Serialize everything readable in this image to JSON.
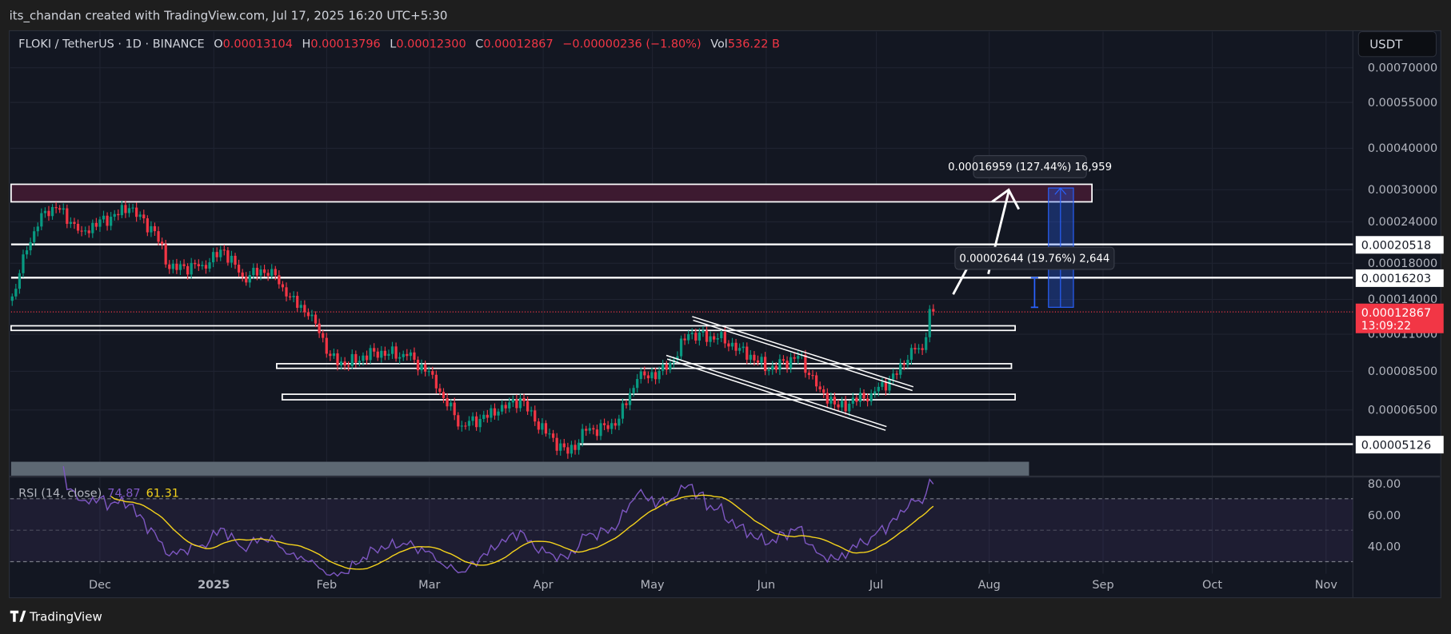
{
  "header": {
    "credit": "its_chandan created with TradingView.com, Jul 17, 2025 16:20 UTC+5:30"
  },
  "legend": {
    "symbol": "FLOKI / TetherUS · 1D · BINANCE",
    "o_label": "O",
    "o": "0.00013104",
    "h_label": "H",
    "h": "0.00013796",
    "l_label": "L",
    "l": "0.00012300",
    "c_label": "C",
    "c": "0.00012867",
    "change": "−0.00000236 (−1.80%)",
    "vol_label": "Vol",
    "vol": "536.22 B"
  },
  "currency_button": "USDT",
  "price_axis": [
    "0.00070000",
    "0.00055000",
    "0.00040000",
    "0.00030000",
    "0.00024000",
    "0.00018000",
    "0.00014000",
    "0.00011000",
    "0.00008500",
    "0.00006500"
  ],
  "level_labels": {
    "l1": "0.00020518",
    "l2": "0.00016203",
    "l3": "0.00005126"
  },
  "current_price": {
    "price": "0.00012867",
    "countdown": "13:09:22"
  },
  "measure_labels": {
    "big": "0.00016959 (127.44%) 16,959",
    "small": "0.00002644 (19.76%) 2,644"
  },
  "rsi": {
    "label": "RSI (14, close)",
    "value": "74.87",
    "ma": "61.31",
    "axis": [
      "80.00",
      "60.00",
      "40.00"
    ]
  },
  "time_axis": [
    "Dec",
    "2025",
    "Feb",
    "Mar",
    "Apr",
    "May",
    "Jun",
    "Jul",
    "Aug",
    "Sep",
    "Oct",
    "Nov"
  ],
  "footer": {
    "brand": "TradingView"
  },
  "colors": {
    "up": "#089981",
    "down": "#f23645",
    "rsi": "#7e57c2",
    "rsi_ma": "#f5d31c",
    "bg": "#131722"
  },
  "price_keypoints": [
    [
      "2024-11-07",
      0.000143
    ],
    [
      "2024-11-11",
      0.000197
    ],
    [
      "2024-11-15",
      0.000255
    ],
    [
      "2024-11-19",
      0.000264
    ],
    [
      "2024-11-26",
      0.000225
    ],
    [
      "2024-12-09",
      0.000264
    ],
    [
      "2024-12-16",
      0.000225
    ],
    [
      "2024-12-20",
      0.000173
    ],
    [
      "2024-12-29",
      0.000178
    ],
    [
      "2025-01-04",
      0.000197
    ],
    [
      "2025-01-09",
      0.000164
    ],
    [
      "2025-01-17",
      0.000173
    ],
    [
      "2025-01-21",
      0.000143
    ],
    [
      "2025-01-28",
      0.000126
    ],
    [
      "2025-02-02",
      9.46e-05
    ],
    [
      "2025-02-06",
      8.85e-05
    ],
    [
      "2025-02-14",
      9.75e-05
    ],
    [
      "2025-02-23",
      9.46e-05
    ],
    [
      "2025-03-02",
      8.3e-05
    ],
    [
      "2025-03-05",
      7.06e-05
    ],
    [
      "2025-03-10",
      5.83e-05
    ],
    [
      "2025-03-20",
      6.43e-05
    ],
    [
      "2025-03-26",
      7.06e-05
    ],
    [
      "2025-03-30",
      6e-05
    ],
    [
      "2025-04-08",
      4.8e-05
    ],
    [
      "2025-04-13",
      5.63e-05
    ],
    [
      "2025-04-21",
      5.83e-05
    ],
    [
      "2025-04-27",
      8.06e-05
    ],
    [
      "2025-05-05",
      8.59e-05
    ],
    [
      "2025-05-11",
      0.00011
    ],
    [
      "2025-05-19",
      0.000107
    ],
    [
      "2025-05-25",
      0.0001
    ],
    [
      "2025-06-02",
      8.59e-05
    ],
    [
      "2025-06-10",
      9.46e-05
    ],
    [
      "2025-06-16",
      7.5e-05
    ],
    [
      "2025-06-21",
      6.62e-05
    ],
    [
      "2025-06-30",
      7.29e-05
    ],
    [
      "2025-07-07",
      8.3e-05
    ],
    [
      "2025-07-11",
      0.0001
    ],
    [
      "2025-07-14",
      9.86e-05
    ],
    [
      "2025-07-16",
      0.000131
    ],
    [
      "2025-07-17",
      0.00012867
    ]
  ]
}
